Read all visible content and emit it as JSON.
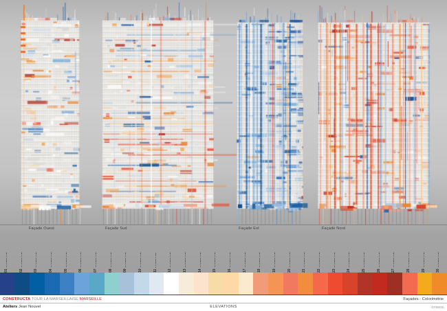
{
  "drawing": {
    "facades": [
      {
        "id": "ouest",
        "label": "Façade Ouest",
        "dominant": "#f2f0ec"
      },
      {
        "id": "sud",
        "label": "Façade Sud",
        "dominant": "#dfe3e8"
      },
      {
        "id": "est",
        "label": "Façade Est",
        "dominant": "#2a5ea8"
      },
      {
        "id": "nord",
        "label": "Façade Nord",
        "dominant": "#e65336"
      }
    ],
    "ground_line_color": "#7d7d7d"
  },
  "palette": {
    "labels": [
      "01",
      "02",
      "03",
      "04",
      "05",
      "06",
      "07",
      "08",
      "09",
      "10",
      "11",
      "12",
      "13",
      "14",
      "15",
      "16",
      "17",
      "18",
      "19",
      "20",
      "21",
      "22",
      "23",
      "24",
      "25",
      "26",
      "27",
      "28",
      "29",
      "30"
    ],
    "colors": [
      "#24418a",
      "#0f4c86",
      "#035fa4",
      "#1a6ab4",
      "#3d80c4",
      "#6ba3da",
      "#5aa8c8",
      "#8ed0cf",
      "#a7c1da",
      "#c3d9ea",
      "#dfe9f1",
      "#ffffff",
      "#f6ecd9",
      "#fbe3cd",
      "#f8dca8",
      "#ffd9a5",
      "#fbeacd",
      "#f29b79",
      "#f59455",
      "#f07960",
      "#f28c3e",
      "#f4694a",
      "#ef4b30",
      "#d9432a",
      "#b03428",
      "#c22a1f",
      "#9e2f23",
      "#f26b50",
      "#f5a91c",
      "#ef8b28"
    ],
    "bottom_rule_color": "#8d2a1c"
  },
  "theme_colors": {
    "brand_red": "#d8232a",
    "blue": "#1a5fa8",
    "red": "#d9432a",
    "orange": "#ee8632"
  },
  "footer": {
    "company": "CONSTRUCTA",
    "project": "TOUR LA MARSEILLAISE",
    "city": "MARSEILLE",
    "architect_bold": "Ateliers",
    "architect_rest": " Jean Nouvel",
    "center_title": "ELEVATIONS",
    "sheet_title": "Façades - Colorimétrie",
    "date": "07/09/15"
  }
}
